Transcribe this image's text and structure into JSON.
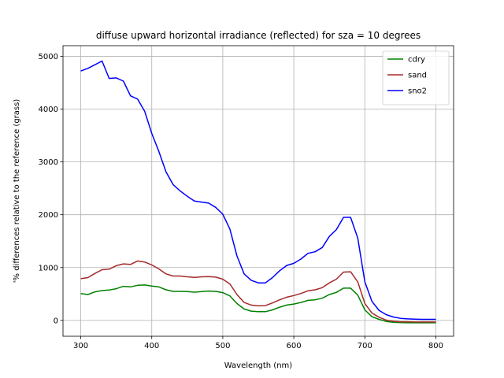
{
  "chart_data": {
    "type": "line",
    "title": "diffuse upward horizontal irradiance (reflected) for sza = 10 degrees",
    "xlabel": "Wavelength (nm)",
    "ylabel": "'% differences relative to the reference (grass)",
    "xlim": [
      275,
      825
    ],
    "ylim": [
      -300,
      5200
    ],
    "xticks": [
      300,
      400,
      500,
      600,
      700,
      800
    ],
    "yticks": [
      0,
      1000,
      2000,
      3000,
      4000,
      5000
    ],
    "grid": true,
    "legend_position": "top-right",
    "x": [
      300,
      310,
      320,
      330,
      340,
      350,
      360,
      370,
      380,
      390,
      400,
      410,
      420,
      430,
      440,
      450,
      460,
      470,
      480,
      490,
      500,
      510,
      520,
      530,
      540,
      550,
      560,
      570,
      580,
      590,
      600,
      610,
      620,
      630,
      640,
      650,
      660,
      670,
      680,
      690,
      700,
      710,
      720,
      730,
      740,
      750,
      760,
      770,
      780,
      790,
      800
    ],
    "series": [
      {
        "name": "cdry",
        "color": "#008000",
        "values": [
          510,
          490,
          540,
          565,
          575,
          600,
          645,
          635,
          665,
          670,
          650,
          635,
          580,
          550,
          550,
          545,
          535,
          545,
          555,
          550,
          525,
          465,
          320,
          215,
          175,
          165,
          165,
          200,
          250,
          290,
          310,
          340,
          380,
          390,
          420,
          490,
          530,
          610,
          610,
          480,
          200,
          70,
          20,
          -20,
          -35,
          -40,
          -45,
          -45,
          -45,
          -45,
          -45
        ]
      },
      {
        "name": "sand",
        "color": "#a52a2a",
        "values": [
          790,
          810,
          890,
          960,
          970,
          1035,
          1070,
          1060,
          1125,
          1105,
          1050,
          975,
          880,
          840,
          840,
          825,
          815,
          825,
          830,
          820,
          780,
          690,
          490,
          340,
          290,
          275,
          280,
          330,
          390,
          440,
          470,
          510,
          560,
          580,
          620,
          710,
          780,
          915,
          920,
          730,
          320,
          140,
          60,
          5,
          -15,
          -25,
          -25,
          -30,
          -30,
          -30,
          -30
        ]
      },
      {
        "name": "sno2",
        "color": "#0000ff",
        "values": [
          4720,
          4770,
          4840,
          4910,
          4580,
          4590,
          4530,
          4250,
          4190,
          3960,
          3540,
          3200,
          2810,
          2570,
          2450,
          2350,
          2260,
          2240,
          2220,
          2140,
          2010,
          1730,
          1220,
          880,
          760,
          710,
          710,
          810,
          940,
          1040,
          1080,
          1160,
          1270,
          1300,
          1380,
          1590,
          1720,
          1950,
          1950,
          1560,
          730,
          360,
          190,
          110,
          65,
          40,
          30,
          25,
          20,
          20,
          20
        ]
      }
    ]
  }
}
